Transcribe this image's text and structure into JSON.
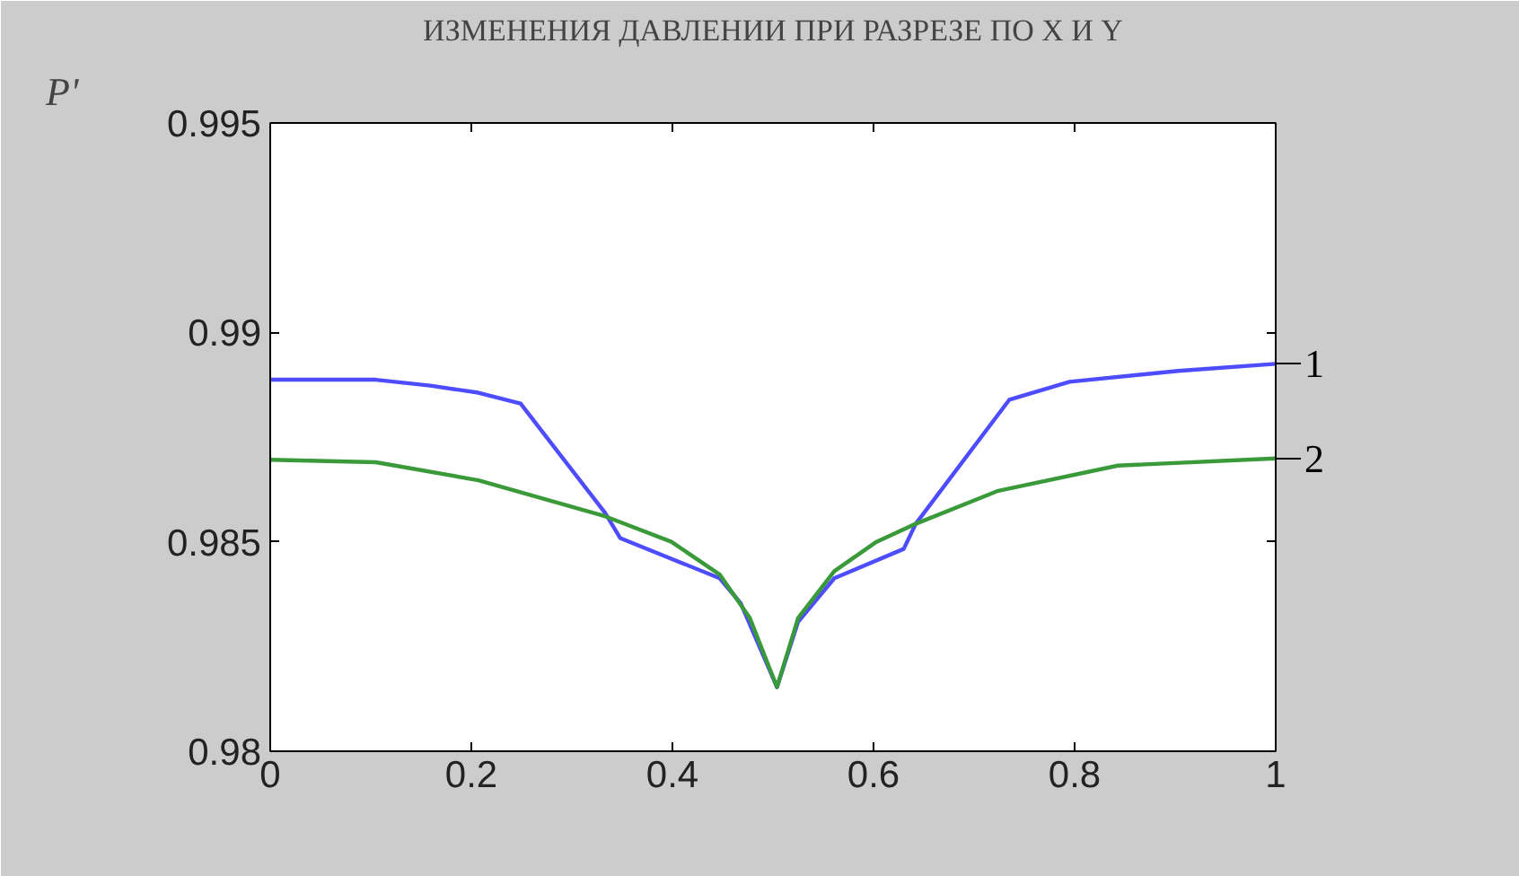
{
  "chart_data": {
    "type": "line",
    "title": "ИЗМЕНЕНИЯ ДАВЛЕНИИ ПРИ РАЗРЕЗЕ ПО X И Y",
    "ylabel": "P'",
    "xlim": [
      0,
      1
    ],
    "xticks": [
      0,
      0.2,
      0.4,
      0.6,
      0.8,
      1
    ],
    "ylim": [
      0.98,
      0.995
    ],
    "yticks": [
      0.98,
      0.985,
      0.99,
      0.995
    ],
    "grid": false,
    "marker": "none",
    "line_style": "solid",
    "series": [
      {
        "name": "1",
        "color": "#4d4dff",
        "x": [
          0,
          0.105,
          0.159,
          0.207,
          0.249,
          0.333,
          0.348,
          0.447,
          0.468,
          0.504,
          0.525,
          0.561,
          0.63,
          0.642,
          0.735,
          0.795,
          0.903,
          1
        ],
        "values": [
          0.98887,
          0.98887,
          0.98873,
          0.98856,
          0.9883,
          0.98569,
          0.98509,
          0.98413,
          0.98353,
          0.98153,
          0.98309,
          0.98413,
          0.98483,
          0.98543,
          0.98839,
          0.98882,
          0.98908,
          0.98925
        ]
      },
      {
        "name": "2",
        "color": "#3a9a3a",
        "x": [
          0,
          0.105,
          0.207,
          0.333,
          0.399,
          0.447,
          0.477,
          0.504,
          0.525,
          0.561,
          0.603,
          0.642,
          0.723,
          0.843,
          1
        ],
        "values": [
          0.98696,
          0.9869,
          0.98647,
          0.98561,
          0.985,
          0.98422,
          0.98318,
          0.98153,
          0.98318,
          0.9843,
          0.985,
          0.98543,
          0.98621,
          0.98682,
          0.98699
        ]
      }
    ]
  }
}
